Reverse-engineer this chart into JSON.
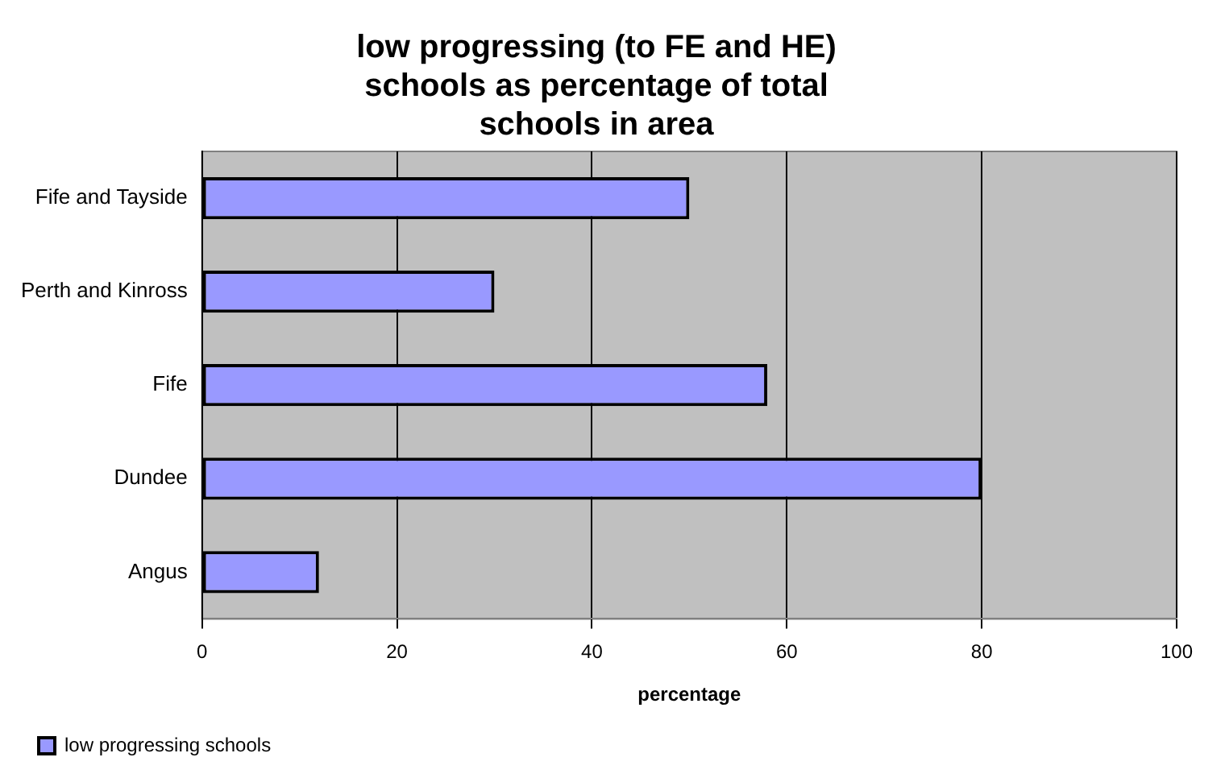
{
  "chart_data": {
    "type": "bar",
    "orientation": "horizontal",
    "title": "low progressing (to FE and HE) schools as percentage of total schools in area",
    "xlabel": "percentage",
    "categories": [
      "Fife and Tayside",
      "Perth and Kinross",
      "Fife",
      "Dundee",
      "Angus"
    ],
    "series": [
      {
        "name": "low progressing schools",
        "color": "#9999ff",
        "values": [
          50,
          30,
          58,
          80,
          12
        ]
      }
    ],
    "xlim": [
      0,
      100
    ],
    "xticks": [
      0,
      20,
      40,
      60,
      80,
      100
    ],
    "grid": "x",
    "legend": "bottom left"
  }
}
